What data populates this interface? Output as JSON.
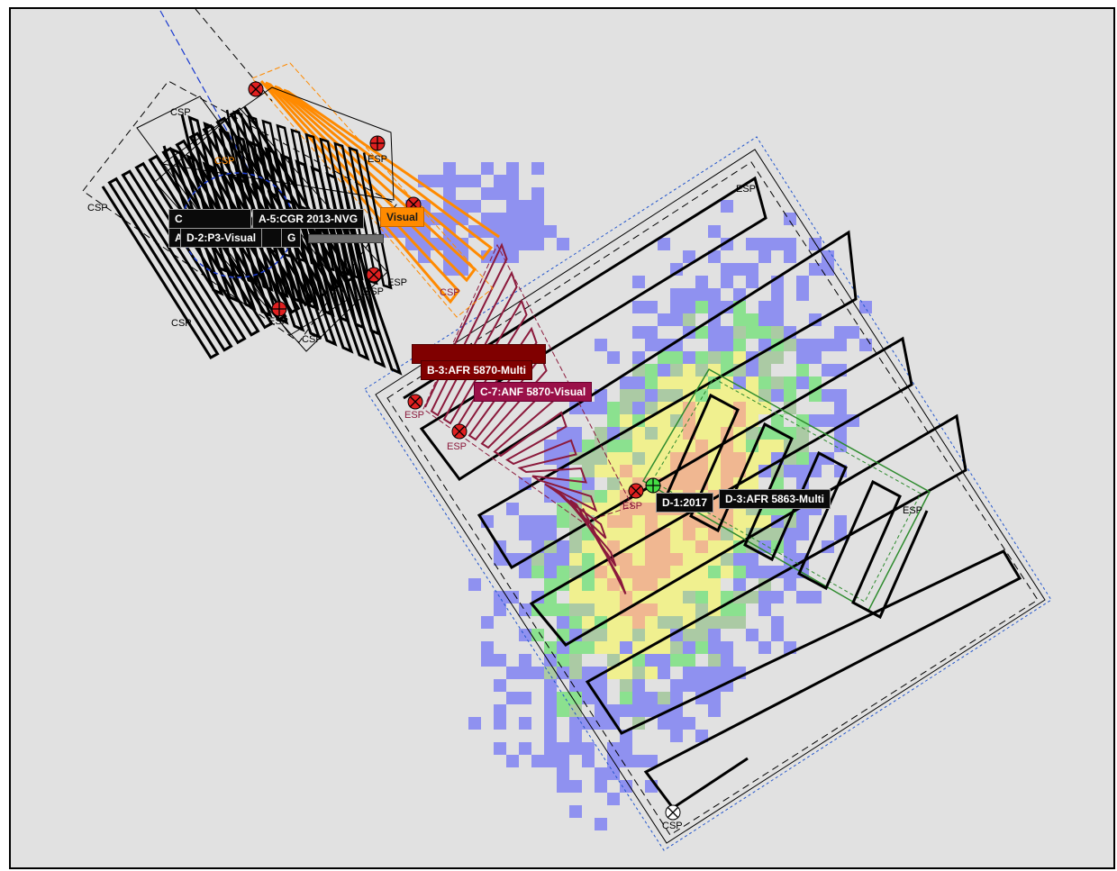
{
  "colors": {
    "background": "#e1e1e1",
    "frame_border": "#000000",
    "search_lines": "#000000",
    "orange_pattern": "#ff8a00",
    "maroon_pattern": "#8b1a3c",
    "green_pattern": "#2e8b2e",
    "blue_boundary": "#2255cc",
    "heat_low": "#8a8cf0",
    "heat_mid": "#86e08a",
    "heat_high": "#f0f08a",
    "heat_peak": "#f0b48c"
  },
  "assignments": {
    "a5": "A-5:CGR 2013-NVG",
    "d2": "D-2:P3-Visual",
    "orange_visual": "Visual",
    "b3": "B-3:AFR 5870-Multi",
    "c7": "C-7:ANF 5870-Visual",
    "d1": "D-1:2017",
    "d3": "D-3:AFR 5863-Multi",
    "partial_a": "A",
    "partial_c": "C",
    "partial_g": "G"
  },
  "marker_labels": {
    "csp": "CSP",
    "esp": "ESP"
  }
}
